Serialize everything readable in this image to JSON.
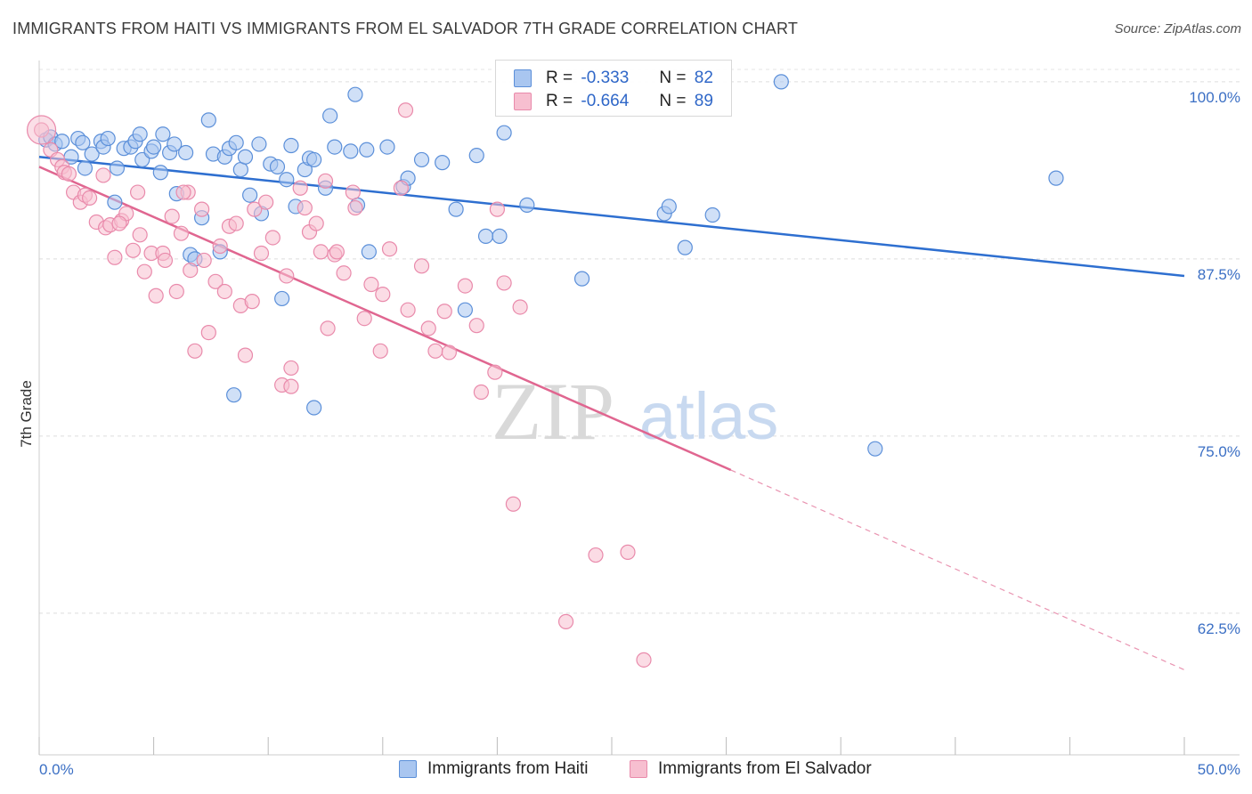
{
  "title": "IMMIGRANTS FROM HAITI VS IMMIGRANTS FROM EL SALVADOR 7TH GRADE CORRELATION CHART",
  "source": "Source: ZipAtlas.com",
  "watermark": {
    "zip": "ZIP",
    "atlas": "atlas"
  },
  "legend": {
    "r_label": "R =",
    "n_label": "N =",
    "rows": [
      {
        "r": "-0.333",
        "n": "82",
        "fill": "#a9c6f0",
        "stroke": "#5b8fd9"
      },
      {
        "r": "-0.664",
        "n": "89",
        "fill": "#f7bfd0",
        "stroke": "#e98aab"
      }
    ]
  },
  "chart_data": {
    "type": "scatter",
    "title": "IMMIGRANTS FROM HAITI VS IMMIGRANTS FROM EL SALVADOR 7TH GRADE CORRELATION CHART",
    "xlabel": "",
    "ylabel": "7th Grade",
    "xlim": [
      0,
      50
    ],
    "ylim": [
      52.5,
      101.5
    ],
    "x_tick_labels": [
      "0.0%",
      "50.0%"
    ],
    "y_ticks": [
      100,
      87.5,
      75,
      62.5
    ],
    "y_tick_labels": [
      "100.0%",
      "87.5%",
      "75.0%",
      "62.5%"
    ],
    "grid": true,
    "legend_position": "bottom",
    "series": [
      {
        "name": "Immigrants from Haiti",
        "color": "#5b8fd9",
        "fill": "#a9c6f0",
        "trend": {
          "x": [
            0,
            50
          ],
          "y": [
            94.7,
            86.3
          ],
          "color": "#2e6fd0"
        },
        "points": [
          [
            0.3,
            95.9
          ],
          [
            0.5,
            96.1
          ],
          [
            0.7,
            95.6
          ],
          [
            1.0,
            95.8
          ],
          [
            1.4,
            94.7
          ],
          [
            1.7,
            96.0
          ],
          [
            1.9,
            95.7
          ],
          [
            2.3,
            94.9
          ],
          [
            2.7,
            95.8
          ],
          [
            2.8,
            95.4
          ],
          [
            3.0,
            96.0
          ],
          [
            3.4,
            93.9
          ],
          [
            3.7,
            95.3
          ],
          [
            4.0,
            95.4
          ],
          [
            4.2,
            95.8
          ],
          [
            4.4,
            96.3
          ],
          [
            4.5,
            94.5
          ],
          [
            4.9,
            95.1
          ],
          [
            5.0,
            95.4
          ],
          [
            5.3,
            93.6
          ],
          [
            5.4,
            96.3
          ],
          [
            5.7,
            95.0
          ],
          [
            5.9,
            95.6
          ],
          [
            6.4,
            95.0
          ],
          [
            6.6,
            87.8
          ],
          [
            6.8,
            87.5
          ],
          [
            7.1,
            90.4
          ],
          [
            7.4,
            97.3
          ],
          [
            7.6,
            94.9
          ],
          [
            7.9,
            88.0
          ],
          [
            8.1,
            94.7
          ],
          [
            8.3,
            95.3
          ],
          [
            8.6,
            95.7
          ],
          [
            8.8,
            93.8
          ],
          [
            9.0,
            94.7
          ],
          [
            9.2,
            92.0
          ],
          [
            9.6,
            95.6
          ],
          [
            9.7,
            90.7
          ],
          [
            10.1,
            94.2
          ],
          [
            10.4,
            94.0
          ],
          [
            10.8,
            93.1
          ],
          [
            11.0,
            95.5
          ],
          [
            11.2,
            91.2
          ],
          [
            11.6,
            93.8
          ],
          [
            11.8,
            94.6
          ],
          [
            12.0,
            94.5
          ],
          [
            12.5,
            92.5
          ],
          [
            12.7,
            97.6
          ],
          [
            12.9,
            95.4
          ],
          [
            13.6,
            95.1
          ],
          [
            13.8,
            99.1
          ],
          [
            13.9,
            91.3
          ],
          [
            14.3,
            95.2
          ],
          [
            14.4,
            88.0
          ],
          [
            15.2,
            95.4
          ],
          [
            15.9,
            92.6
          ],
          [
            16.1,
            93.2
          ],
          [
            16.7,
            94.5
          ],
          [
            17.6,
            94.3
          ],
          [
            18.2,
            91.0
          ],
          [
            19.1,
            94.8
          ],
          [
            19.5,
            89.1
          ],
          [
            20.1,
            89.1
          ],
          [
            20.3,
            96.4
          ],
          [
            21.3,
            91.3
          ],
          [
            23.7,
            86.1
          ],
          [
            27.3,
            90.7
          ],
          [
            27.5,
            91.2
          ],
          [
            28.2,
            88.3
          ],
          [
            29.4,
            90.6
          ],
          [
            32.4,
            100.0
          ],
          [
            36.5,
            74.1
          ],
          [
            44.4,
            93.2
          ],
          [
            8.5,
            77.9
          ],
          [
            12.0,
            77.0
          ],
          [
            10.6,
            84.7
          ],
          [
            18.6,
            83.9
          ],
          [
            3.3,
            91.5
          ],
          [
            2.0,
            93.9
          ],
          [
            6.0,
            92.1
          ]
        ]
      },
      {
        "name": "Immigrants from El Salvador",
        "color": "#e98aab",
        "fill": "#f7bfd0",
        "trend": {
          "x": [
            0,
            30.2
          ],
          "y": [
            94.0,
            72.6
          ],
          "color": "#e06690"
        },
        "trend_dashed": {
          "x": [
            30.2,
            50
          ],
          "y": [
            72.6,
            58.5
          ]
        },
        "points": [
          [
            0.1,
            96.6
          ],
          [
            0.5,
            95.2
          ],
          [
            0.8,
            94.5
          ],
          [
            1.0,
            94.0
          ],
          [
            1.1,
            93.6
          ],
          [
            1.3,
            93.5
          ],
          [
            1.5,
            92.2
          ],
          [
            1.8,
            91.5
          ],
          [
            2.0,
            92.0
          ],
          [
            2.2,
            91.8
          ],
          [
            2.5,
            90.1
          ],
          [
            2.8,
            93.4
          ],
          [
            2.9,
            89.7
          ],
          [
            3.1,
            89.9
          ],
          [
            3.3,
            87.6
          ],
          [
            3.6,
            90.2
          ],
          [
            3.8,
            90.7
          ],
          [
            4.1,
            88.1
          ],
          [
            4.3,
            92.2
          ],
          [
            4.4,
            89.2
          ],
          [
            4.6,
            86.6
          ],
          [
            4.9,
            87.9
          ],
          [
            5.1,
            84.9
          ],
          [
            5.4,
            87.9
          ],
          [
            5.5,
            87.4
          ],
          [
            5.8,
            90.5
          ],
          [
            6.0,
            85.2
          ],
          [
            6.2,
            89.3
          ],
          [
            6.5,
            92.2
          ],
          [
            6.6,
            86.7
          ],
          [
            6.8,
            81.0
          ],
          [
            7.1,
            91.0
          ],
          [
            7.2,
            87.4
          ],
          [
            7.4,
            82.3
          ],
          [
            7.7,
            85.9
          ],
          [
            7.9,
            88.4
          ],
          [
            8.1,
            85.2
          ],
          [
            8.3,
            89.8
          ],
          [
            8.6,
            90.0
          ],
          [
            8.8,
            84.2
          ],
          [
            9.0,
            80.7
          ],
          [
            9.3,
            84.5
          ],
          [
            9.4,
            91.0
          ],
          [
            9.7,
            87.9
          ],
          [
            9.9,
            91.5
          ],
          [
            10.2,
            89.0
          ],
          [
            10.6,
            78.6
          ],
          [
            10.8,
            86.3
          ],
          [
            11.0,
            79.8
          ],
          [
            11.4,
            92.5
          ],
          [
            11.6,
            91.1
          ],
          [
            11.8,
            89.4
          ],
          [
            12.1,
            90.0
          ],
          [
            12.3,
            88.0
          ],
          [
            12.6,
            82.6
          ],
          [
            12.9,
            87.8
          ],
          [
            13.0,
            88.0
          ],
          [
            13.3,
            86.5
          ],
          [
            13.7,
            92.2
          ],
          [
            13.8,
            91.1
          ],
          [
            14.2,
            83.3
          ],
          [
            14.5,
            85.7
          ],
          [
            14.9,
            81.0
          ],
          [
            15.0,
            85.0
          ],
          [
            15.3,
            88.2
          ],
          [
            16.0,
            98.0
          ],
          [
            16.1,
            83.9
          ],
          [
            16.7,
            87.0
          ],
          [
            17.0,
            82.6
          ],
          [
            17.3,
            81.0
          ],
          [
            17.7,
            83.8
          ],
          [
            17.9,
            80.9
          ],
          [
            18.6,
            85.6
          ],
          [
            19.1,
            82.8
          ],
          [
            19.3,
            78.1
          ],
          [
            19.9,
            79.5
          ],
          [
            20.3,
            85.8
          ],
          [
            20.7,
            70.2
          ],
          [
            21.0,
            84.1
          ],
          [
            24.3,
            66.6
          ],
          [
            25.7,
            66.8
          ],
          [
            23.0,
            61.9
          ],
          [
            26.4,
            59.2
          ],
          [
            11.0,
            78.5
          ],
          [
            6.3,
            92.2
          ],
          [
            3.5,
            90.0
          ],
          [
            12.5,
            93.0
          ],
          [
            15.8,
            92.5
          ],
          [
            20.0,
            91.0
          ]
        ]
      }
    ]
  }
}
